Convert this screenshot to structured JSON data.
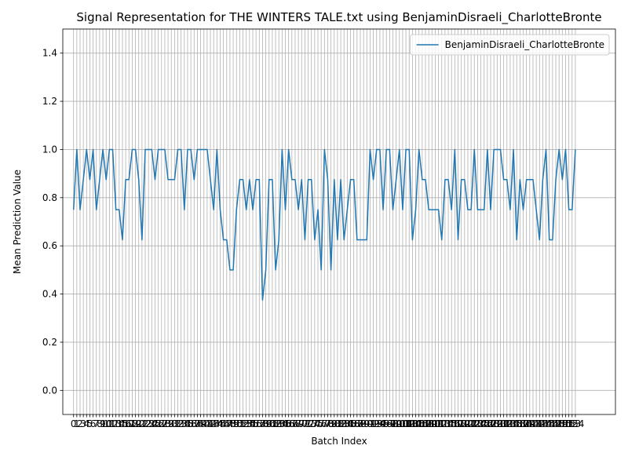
{
  "chart_data": {
    "type": "line",
    "title": "Signal Representation for THE WINTERS TALE.txt using BenjaminDisraeli_CharlotteBronte",
    "xlabel": "Batch Index",
    "ylabel": "Mean Prediction Value",
    "xlim": [
      -3.3,
      166.3
    ],
    "ylim": [
      -0.1,
      1.5
    ],
    "yticks": [
      0.0,
      0.2,
      0.4,
      0.6,
      0.8,
      1.0,
      1.2,
      1.4
    ],
    "grid": true,
    "legend_position": "top-right",
    "series": [
      {
        "name": "BenjaminDisraeli_CharlotteBronte",
        "color": "#1f77b4",
        "x_start": 0,
        "values": [
          0.75,
          1.0,
          0.75,
          0.875,
          1.0,
          0.875,
          1.0,
          0.75,
          0.875,
          1.0,
          0.875,
          1.0,
          1.0,
          0.75,
          0.75,
          0.625,
          0.875,
          0.875,
          1.0,
          1.0,
          0.875,
          0.625,
          1.0,
          1.0,
          1.0,
          0.875,
          1.0,
          1.0,
          1.0,
          0.875,
          0.875,
          0.875,
          1.0,
          1.0,
          0.75,
          1.0,
          1.0,
          0.875,
          1.0,
          1.0,
          1.0,
          1.0,
          0.875,
          0.75,
          1.0,
          0.75,
          0.625,
          0.625,
          0.5,
          0.5,
          0.75,
          0.875,
          0.875,
          0.75,
          0.875,
          0.75,
          0.875,
          0.875,
          0.375,
          0.5,
          0.875,
          0.875,
          0.5,
          0.625,
          1.0,
          0.75,
          1.0,
          0.875,
          0.875,
          0.75,
          0.875,
          0.625,
          0.875,
          0.875,
          0.625,
          0.75,
          0.5,
          1.0,
          0.875,
          0.5,
          0.875,
          0.625,
          0.875,
          0.625,
          0.75,
          0.875,
          0.875,
          0.625,
          0.625,
          0.625,
          0.625,
          1.0,
          0.875,
          1.0,
          1.0,
          0.75,
          1.0,
          1.0,
          0.75,
          0.875,
          1.0,
          0.75,
          1.0,
          1.0,
          0.625,
          0.75,
          1.0,
          0.875,
          0.875,
          0.75,
          0.75,
          0.75,
          0.75,
          0.625,
          0.875,
          0.875,
          0.75,
          1.0,
          0.625,
          0.875,
          0.875,
          0.75,
          0.75,
          1.0,
          0.75,
          0.75,
          0.75,
          1.0,
          0.75,
          1.0,
          1.0,
          1.0,
          0.875,
          0.875,
          0.75,
          1.0,
          0.625,
          0.875,
          0.75,
          0.875,
          0.875,
          0.875,
          0.75,
          0.625,
          0.875,
          1.0,
          0.625,
          0.625,
          0.875,
          1.0,
          0.875,
          1.0,
          0.75,
          0.75,
          1.0
        ]
      }
    ]
  }
}
